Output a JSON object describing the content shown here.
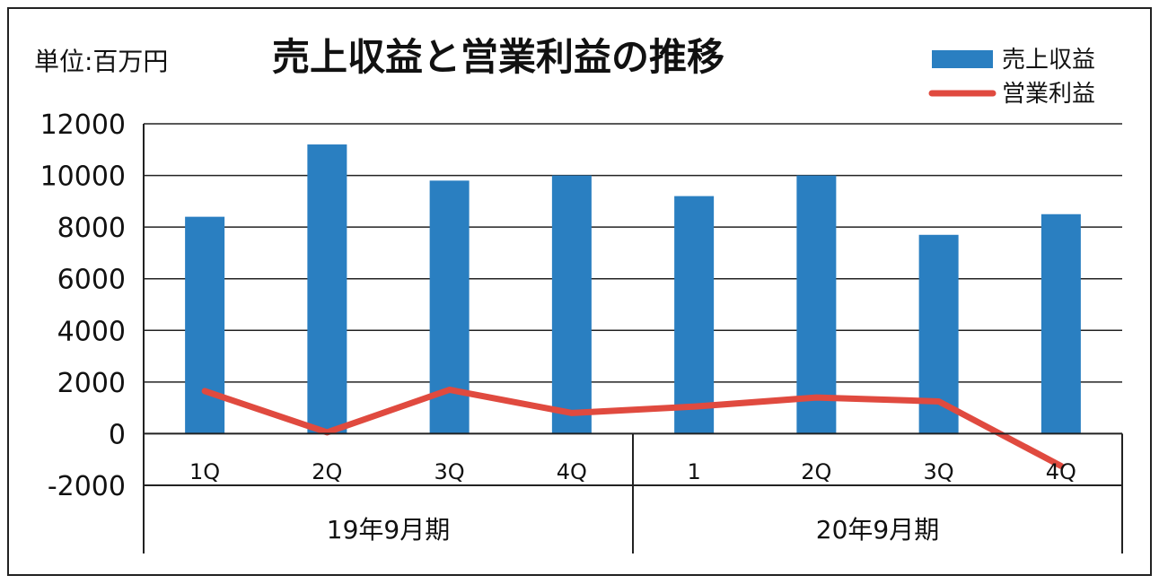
{
  "chart_data": {
    "type": "bar",
    "title": "売上収益と営業利益の推移",
    "unit_label": "単位:百万円",
    "categories": [
      "1Q",
      "2Q",
      "3Q",
      "4Q",
      "1",
      "2Q",
      "3Q",
      "4Q"
    ],
    "groups": [
      {
        "label": "19年9月期",
        "categories": [
          0,
          1,
          2,
          3
        ]
      },
      {
        "label": "20年9月期",
        "categories": [
          4,
          5,
          6,
          7
        ]
      }
    ],
    "series": [
      {
        "name": "売上収益",
        "kind": "bar",
        "color": "#2a7fc1",
        "values": [
          8400,
          11200,
          9800,
          10000,
          9200,
          10000,
          7700,
          8500
        ]
      },
      {
        "name": "営業利益",
        "kind": "line",
        "color": "#e04a3f",
        "values": [
          1650,
          50,
          1700,
          800,
          1050,
          1400,
          1250,
          -1250
        ]
      }
    ],
    "ylim": [
      -2000,
      12000
    ],
    "yticks": [
      12000,
      10000,
      8000,
      6000,
      4000,
      2000,
      0,
      -2000
    ],
    "grid": true,
    "legend_position": "top-right"
  }
}
